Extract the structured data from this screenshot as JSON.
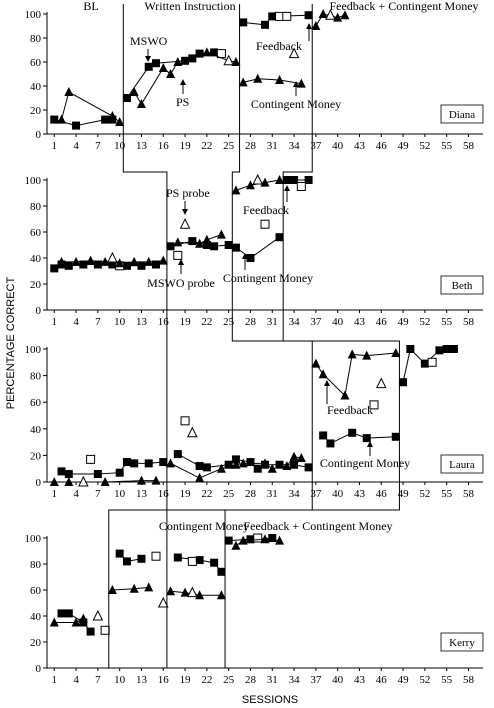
{
  "figure": {
    "y_axis_label": "PERCENTAGE CORRECT",
    "x_axis_label": "SESSIONS",
    "phase_labels": {
      "baseline": "BL",
      "written_instruction": "Written Instruction",
      "feedback_contingent_money": "Feedback + Contingent Money"
    }
  },
  "chart_data": [
    {
      "type": "line",
      "panel": "Diana",
      "ylim": [
        0,
        100
      ],
      "xlim": [
        0,
        60
      ],
      "yticks": [
        0,
        20,
        40,
        60,
        80,
        100
      ],
      "xticks": [
        1,
        4,
        7,
        10,
        13,
        16,
        19,
        22,
        25,
        28,
        31,
        34,
        37,
        40,
        43,
        46,
        49,
        52,
        55,
        58
      ],
      "phase_changes": [
        10.5,
        26.5,
        36.5
      ],
      "annotations": [
        {
          "text": "BL"
        },
        {
          "text": "Written Instruction"
        },
        {
          "text": "Feedback + Contingent Money"
        },
        {
          "text": "MSWO"
        },
        {
          "text": "PS"
        },
        {
          "text": "Feedback"
        },
        {
          "text": "Contingent Money"
        }
      ],
      "series": [
        {
          "key": "mswo",
          "marker": "filled-square",
          "points": [
            [
              1,
              12
            ],
            [
              4,
              7
            ],
            [
              8,
              12
            ],
            [
              9,
              12
            ],
            null,
            [
              11,
              30
            ],
            [
              14,
              56
            ],
            [
              15,
              59
            ],
            [
              19,
              61
            ],
            [
              20,
              63
            ],
            [
              21,
              67
            ],
            [
              23,
              68
            ],
            null,
            [
              27,
              93
            ],
            [
              30,
              91
            ],
            [
              31,
              98
            ],
            [
              36,
              99
            ]
          ]
        },
        {
          "key": "mswo_probe",
          "marker": "open-square",
          "points": [
            [
              24,
              67
            ],
            [
              32,
              98
            ],
            [
              33,
              98
            ]
          ]
        },
        {
          "key": "ps",
          "marker": "filled-triangle",
          "points": [
            [
              2,
              12
            ],
            [
              3,
              35
            ],
            [
              9,
              15
            ],
            [
              10,
              10
            ],
            null,
            [
              12,
              35
            ],
            [
              13,
              25
            ],
            [
              16,
              55
            ],
            [
              17,
              50
            ],
            [
              18,
              60
            ],
            [
              22,
              68
            ],
            [
              25,
              61
            ],
            [
              26,
              60
            ],
            null,
            [
              27,
              43
            ],
            [
              29,
              46
            ],
            [
              32,
              45
            ],
            [
              35,
              42
            ],
            null,
            [
              37,
              90
            ],
            [
              38,
              100
            ],
            [
              40,
              97
            ],
            [
              41,
              99
            ]
          ]
        },
        {
          "key": "ps_probe",
          "marker": "open-triangle",
          "points": [
            [
              25,
              61
            ],
            [
              34,
              67
            ],
            [
              39,
              99
            ]
          ]
        }
      ]
    },
    {
      "type": "line",
      "panel": "Beth",
      "ylim": [
        0,
        100
      ],
      "xlim": [
        0,
        60
      ],
      "yticks": [
        0,
        20,
        40,
        60,
        80,
        100
      ],
      "xticks": [
        1,
        4,
        7,
        10,
        13,
        16,
        19,
        22,
        25,
        28,
        31,
        34,
        37,
        40,
        43,
        46,
        49,
        52,
        55,
        58
      ],
      "phase_changes": [
        16.5,
        25.5,
        32.5
      ],
      "annotations": [
        {
          "text": "PS probe"
        },
        {
          "text": "MSWO probe"
        },
        {
          "text": "Feedback"
        },
        {
          "text": "Contingent Money"
        }
      ],
      "series": [
        {
          "key": "mswo",
          "marker": "filled-square",
          "points": [
            [
              1,
              32
            ],
            [
              2,
              35
            ],
            [
              3,
              34
            ],
            [
              5,
              35
            ],
            [
              7,
              35
            ],
            [
              9,
              35
            ],
            [
              11,
              34
            ],
            [
              13,
              34
            ],
            [
              15,
              35
            ],
            null,
            [
              17,
              49
            ],
            [
              20,
              53
            ],
            [
              22,
              50
            ],
            [
              23,
              49
            ],
            [
              25,
              50
            ],
            null,
            [
              26,
              48
            ],
            [
              28,
              40
            ],
            [
              32,
              56
            ],
            null,
            [
              33,
              100
            ],
            [
              34,
              100
            ],
            [
              36,
              100
            ]
          ]
        },
        {
          "key": "mswo_probe",
          "marker": "open-square",
          "points": [
            [
              10,
              34
            ],
            [
              18,
              42
            ],
            [
              30,
              66
            ],
            [
              35,
              95
            ]
          ]
        },
        {
          "key": "ps",
          "marker": "filled-triangle",
          "points": [
            [
              2,
              37
            ],
            [
              4,
              37
            ],
            [
              6,
              38
            ],
            [
              8,
              37
            ],
            [
              10,
              36
            ],
            [
              12,
              37
            ],
            [
              14,
              37
            ],
            [
              16,
              38
            ],
            null,
            [
              18,
              52
            ],
            [
              21,
              51
            ],
            [
              22,
              54
            ],
            [
              24,
              58
            ],
            null,
            [
              26,
              92
            ],
            [
              28,
              96
            ],
            [
              30,
              98
            ],
            [
              32,
              100
            ]
          ]
        },
        {
          "key": "ps_probe",
          "marker": "open-triangle",
          "points": [
            [
              9,
              40
            ],
            [
              19,
              66
            ],
            [
              29,
              100
            ]
          ]
        }
      ]
    },
    {
      "type": "line",
      "panel": "Laura",
      "ylim": [
        0,
        100
      ],
      "xlim": [
        0,
        60
      ],
      "yticks": [
        0,
        20,
        40,
        60,
        80,
        100
      ],
      "xticks": [
        1,
        4,
        7,
        10,
        13,
        16,
        19,
        22,
        25,
        28,
        31,
        34,
        37,
        40,
        43,
        46,
        49,
        52,
        55,
        58
      ],
      "phase_changes": [
        16.5,
        36.5,
        48.5
      ],
      "annotations": [
        {
          "text": "Feedback"
        },
        {
          "text": "Contingent Money"
        }
      ],
      "series": [
        {
          "key": "mswo",
          "marker": "filled-square",
          "points": [
            [
              2,
              8
            ],
            [
              3,
              6
            ],
            [
              7,
              6
            ],
            [
              10,
              7
            ],
            [
              11,
              15
            ],
            [
              12,
              14
            ],
            [
              14,
              14
            ],
            [
              16,
              15
            ],
            null,
            [
              18,
              21
            ],
            [
              21,
              12
            ],
            [
              22,
              11
            ],
            [
              25,
              13
            ],
            [
              26,
              17
            ],
            [
              28,
              15
            ],
            [
              29,
              10
            ],
            [
              30,
              13
            ],
            [
              32,
              13
            ],
            [
              34,
              13
            ],
            [
              36,
              11
            ],
            null,
            [
              38,
              35
            ],
            [
              39,
              29
            ],
            [
              42,
              37
            ],
            [
              44,
              33
            ],
            [
              48,
              34
            ],
            null,
            [
              49,
              75
            ],
            [
              50,
              100
            ],
            [
              52,
              89
            ],
            [
              54,
              99
            ],
            [
              55,
              100
            ],
            [
              56,
              100
            ]
          ]
        },
        {
          "key": "mswo_probe",
          "marker": "open-square",
          "points": [
            [
              6,
              17
            ],
            [
              19,
              46
            ],
            [
              45,
              58
            ],
            [
              53,
              90
            ]
          ]
        },
        {
          "key": "ps",
          "marker": "filled-triangle",
          "points": [
            [
              1,
              0
            ],
            [
              3,
              0
            ],
            [
              8,
              0
            ],
            [
              13,
              1
            ],
            [
              15,
              1
            ],
            null,
            [
              17,
              14
            ],
            [
              21,
              3
            ],
            [
              24,
              10
            ],
            [
              26,
              13
            ],
            [
              27,
              14
            ],
            [
              30,
              14
            ],
            [
              31,
              10
            ],
            [
              33,
              12
            ],
            [
              34,
              19
            ],
            [
              35,
              18
            ],
            null,
            [
              37,
              89
            ],
            [
              38,
              81
            ],
            [
              41,
              65
            ],
            [
              42,
              96
            ],
            [
              44,
              95
            ],
            [
              48,
              97
            ]
          ]
        },
        {
          "key": "ps_probe",
          "marker": "open-triangle",
          "points": [
            [
              5,
              0
            ],
            [
              20,
              37
            ],
            [
              46,
              74
            ]
          ]
        }
      ]
    },
    {
      "type": "line",
      "panel": "Kerry",
      "ylim": [
        0,
        100
      ],
      "xlim": [
        0,
        60
      ],
      "yticks": [
        0,
        20,
        40,
        60,
        80,
        100
      ],
      "xticks": [
        1,
        4,
        7,
        10,
        13,
        16,
        19,
        22,
        25,
        28,
        31,
        34,
        37,
        40,
        43,
        46,
        49,
        52,
        55,
        58
      ],
      "phase_changes": [
        8.5,
        16.5,
        24.5
      ],
      "annotations": [
        {
          "text": "Contingent Money"
        },
        {
          "text": "Feedback + Contingent Money"
        }
      ],
      "series": [
        {
          "key": "mswo",
          "marker": "filled-square",
          "points": [
            [
              2,
              42
            ],
            [
              3,
              42
            ],
            [
              5,
              35
            ],
            [
              6,
              28
            ],
            null,
            [
              10,
              88
            ],
            [
              11,
              82
            ],
            [
              13,
              84
            ],
            null,
            [
              18,
              85
            ],
            [
              21,
              83
            ],
            [
              23,
              81
            ],
            [
              24,
              74
            ],
            null,
            [
              25,
              98
            ],
            [
              28,
              99
            ],
            [
              31,
              100
            ]
          ]
        },
        {
          "key": "mswo_probe",
          "marker": "open-square",
          "points": [
            [
              8,
              29
            ],
            [
              15,
              86
            ],
            [
              20,
              82
            ],
            [
              29,
              100
            ]
          ]
        },
        {
          "key": "ps",
          "marker": "filled-triangle",
          "points": [
            [
              1,
              35
            ],
            [
              4,
              35
            ],
            [
              5,
              38
            ],
            null,
            [
              9,
              60
            ],
            [
              12,
              61
            ],
            [
              14,
              62
            ],
            null,
            [
              17,
              59
            ],
            [
              19,
              58
            ],
            [
              21,
              56
            ],
            [
              24,
              56
            ],
            null,
            [
              26,
              94
            ],
            [
              27,
              98
            ],
            [
              30,
              99
            ],
            [
              32,
              98
            ]
          ]
        },
        {
          "key": "ps_probe",
          "marker": "open-triangle",
          "points": [
            [
              7,
              40
            ],
            [
              16,
              50
            ],
            [
              20,
              58
            ]
          ]
        }
      ]
    }
  ]
}
